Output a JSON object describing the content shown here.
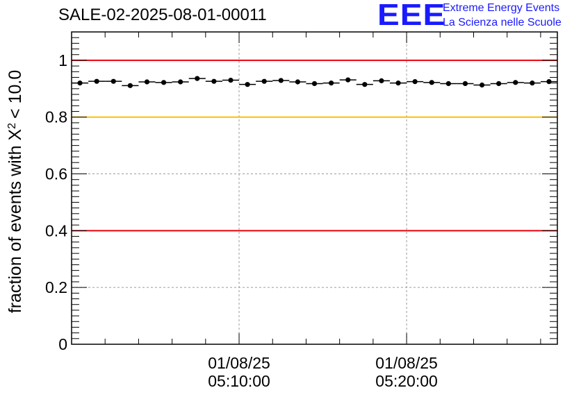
{
  "header": {
    "title": "SALE-02-2025-08-01-00011",
    "logo_text": "EEE",
    "logo_line1": "Extreme Energy Events",
    "logo_line2": "La Scienza nelle Scuole"
  },
  "colors": {
    "red_line": "#e8000b",
    "yellow_line": "#ffc000",
    "points": "#000000",
    "grid": "#9a9a9a",
    "logo": "#1a1aff"
  },
  "chart_data": {
    "type": "scatter",
    "title": "SALE-02-2025-08-01-00011",
    "ylabel": "fraction of events with X",
    "ylabel_sup": "2",
    "ylabel_tail": "< 10.0",
    "xlabel": "",
    "ylim": [
      0,
      1.1
    ],
    "yticks": [
      0,
      0.2,
      0.4,
      0.6,
      0.8,
      1
    ],
    "ytick_labels": [
      "0",
      "0.2",
      "0.4",
      "0.6",
      "0.8",
      "1"
    ],
    "xlim_minutes": [
      0,
      29
    ],
    "xticks": [
      {
        "at_minutes": 10,
        "date": "01/08/25",
        "time": "05:10:00"
      },
      {
        "at_minutes": 20,
        "date": "01/08/25",
        "time": "05:20:00"
      }
    ],
    "reference_lines": [
      {
        "y": 1.0,
        "color": "red"
      },
      {
        "y": 0.8,
        "color": "yellow"
      },
      {
        "y": 0.4,
        "color": "red"
      }
    ],
    "bin_width_minutes": 1,
    "x_minutes": [
      0.5,
      1.5,
      2.5,
      3.5,
      4.5,
      5.5,
      6.5,
      7.5,
      8.5,
      9.5,
      10.5,
      11.5,
      12.5,
      13.5,
      14.5,
      15.5,
      16.5,
      17.5,
      18.5,
      19.5,
      20.5,
      21.5,
      22.5,
      23.5,
      24.5,
      25.5,
      26.5,
      27.5,
      28.5
    ],
    "values": [
      0.92,
      0.926,
      0.926,
      0.911,
      0.924,
      0.922,
      0.924,
      0.936,
      0.926,
      0.93,
      0.915,
      0.926,
      0.929,
      0.924,
      0.918,
      0.92,
      0.931,
      0.915,
      0.928,
      0.92,
      0.925,
      0.922,
      0.918,
      0.918,
      0.913,
      0.918,
      0.922,
      0.92,
      0.925
    ]
  }
}
